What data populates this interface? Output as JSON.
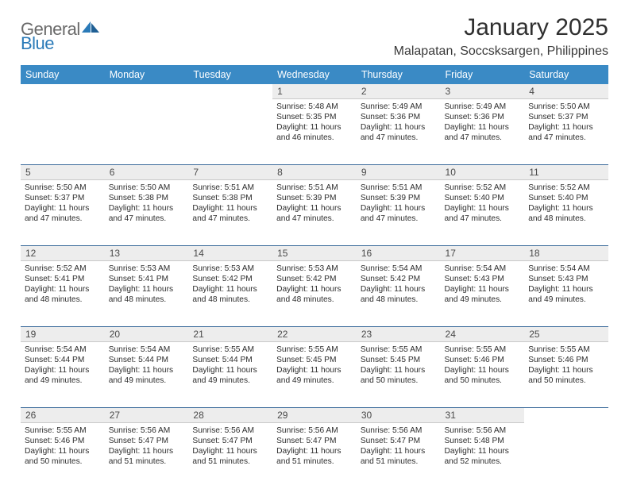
{
  "brand": {
    "name_a": "General",
    "name_b": "Blue"
  },
  "title": "January 2025",
  "location": "Malapatan, Soccsksargen, Philippines",
  "colors": {
    "header_bg": "#3a8ac5",
    "header_fg": "#ffffff",
    "daynum_bg": "#ededed",
    "row_divider": "#3a6a9a",
    "logo_gray": "#6a6a6a",
    "logo_blue": "#2a7ab8",
    "text": "#2d2d2d"
  },
  "weekdays": [
    "Sunday",
    "Monday",
    "Tuesday",
    "Wednesday",
    "Thursday",
    "Friday",
    "Saturday"
  ],
  "weeks": [
    [
      null,
      null,
      null,
      {
        "n": "1",
        "rise": "5:48 AM",
        "set": "5:35 PM",
        "dl": "11 hours and 46 minutes."
      },
      {
        "n": "2",
        "rise": "5:49 AM",
        "set": "5:36 PM",
        "dl": "11 hours and 47 minutes."
      },
      {
        "n": "3",
        "rise": "5:49 AM",
        "set": "5:36 PM",
        "dl": "11 hours and 47 minutes."
      },
      {
        "n": "4",
        "rise": "5:50 AM",
        "set": "5:37 PM",
        "dl": "11 hours and 47 minutes."
      }
    ],
    [
      {
        "n": "5",
        "rise": "5:50 AM",
        "set": "5:37 PM",
        "dl": "11 hours and 47 minutes."
      },
      {
        "n": "6",
        "rise": "5:50 AM",
        "set": "5:38 PM",
        "dl": "11 hours and 47 minutes."
      },
      {
        "n": "7",
        "rise": "5:51 AM",
        "set": "5:38 PM",
        "dl": "11 hours and 47 minutes."
      },
      {
        "n": "8",
        "rise": "5:51 AM",
        "set": "5:39 PM",
        "dl": "11 hours and 47 minutes."
      },
      {
        "n": "9",
        "rise": "5:51 AM",
        "set": "5:39 PM",
        "dl": "11 hours and 47 minutes."
      },
      {
        "n": "10",
        "rise": "5:52 AM",
        "set": "5:40 PM",
        "dl": "11 hours and 47 minutes."
      },
      {
        "n": "11",
        "rise": "5:52 AM",
        "set": "5:40 PM",
        "dl": "11 hours and 48 minutes."
      }
    ],
    [
      {
        "n": "12",
        "rise": "5:52 AM",
        "set": "5:41 PM",
        "dl": "11 hours and 48 minutes."
      },
      {
        "n": "13",
        "rise": "5:53 AM",
        "set": "5:41 PM",
        "dl": "11 hours and 48 minutes."
      },
      {
        "n": "14",
        "rise": "5:53 AM",
        "set": "5:42 PM",
        "dl": "11 hours and 48 minutes."
      },
      {
        "n": "15",
        "rise": "5:53 AM",
        "set": "5:42 PM",
        "dl": "11 hours and 48 minutes."
      },
      {
        "n": "16",
        "rise": "5:54 AM",
        "set": "5:42 PM",
        "dl": "11 hours and 48 minutes."
      },
      {
        "n": "17",
        "rise": "5:54 AM",
        "set": "5:43 PM",
        "dl": "11 hours and 49 minutes."
      },
      {
        "n": "18",
        "rise": "5:54 AM",
        "set": "5:43 PM",
        "dl": "11 hours and 49 minutes."
      }
    ],
    [
      {
        "n": "19",
        "rise": "5:54 AM",
        "set": "5:44 PM",
        "dl": "11 hours and 49 minutes."
      },
      {
        "n": "20",
        "rise": "5:54 AM",
        "set": "5:44 PM",
        "dl": "11 hours and 49 minutes."
      },
      {
        "n": "21",
        "rise": "5:55 AM",
        "set": "5:44 PM",
        "dl": "11 hours and 49 minutes."
      },
      {
        "n": "22",
        "rise": "5:55 AM",
        "set": "5:45 PM",
        "dl": "11 hours and 49 minutes."
      },
      {
        "n": "23",
        "rise": "5:55 AM",
        "set": "5:45 PM",
        "dl": "11 hours and 50 minutes."
      },
      {
        "n": "24",
        "rise": "5:55 AM",
        "set": "5:46 PM",
        "dl": "11 hours and 50 minutes."
      },
      {
        "n": "25",
        "rise": "5:55 AM",
        "set": "5:46 PM",
        "dl": "11 hours and 50 minutes."
      }
    ],
    [
      {
        "n": "26",
        "rise": "5:55 AM",
        "set": "5:46 PM",
        "dl": "11 hours and 50 minutes."
      },
      {
        "n": "27",
        "rise": "5:56 AM",
        "set": "5:47 PM",
        "dl": "11 hours and 51 minutes."
      },
      {
        "n": "28",
        "rise": "5:56 AM",
        "set": "5:47 PM",
        "dl": "11 hours and 51 minutes."
      },
      {
        "n": "29",
        "rise": "5:56 AM",
        "set": "5:47 PM",
        "dl": "11 hours and 51 minutes."
      },
      {
        "n": "30",
        "rise": "5:56 AM",
        "set": "5:47 PM",
        "dl": "11 hours and 51 minutes."
      },
      {
        "n": "31",
        "rise": "5:56 AM",
        "set": "5:48 PM",
        "dl": "11 hours and 52 minutes."
      },
      null
    ]
  ],
  "labels": {
    "sunrise": "Sunrise:",
    "sunset": "Sunset:",
    "daylight": "Daylight:"
  }
}
